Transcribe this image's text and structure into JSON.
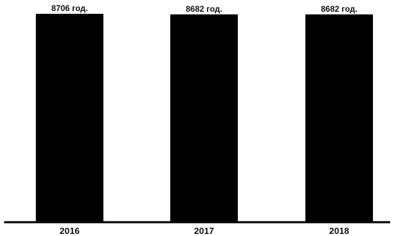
{
  "chart_data": {
    "type": "bar",
    "categories": [
      "2016",
      "2017",
      "2018"
    ],
    "values": [
      8706,
      8682,
      8682
    ],
    "data_labels": [
      "8706 год.",
      "8682 год.",
      "8682 год."
    ],
    "title": "",
    "xlabel": "",
    "ylabel": "",
    "grid": false,
    "legend": "none",
    "colors": {
      "bar": "#000000",
      "axis": "#000000",
      "background": "#ffffff"
    }
  }
}
